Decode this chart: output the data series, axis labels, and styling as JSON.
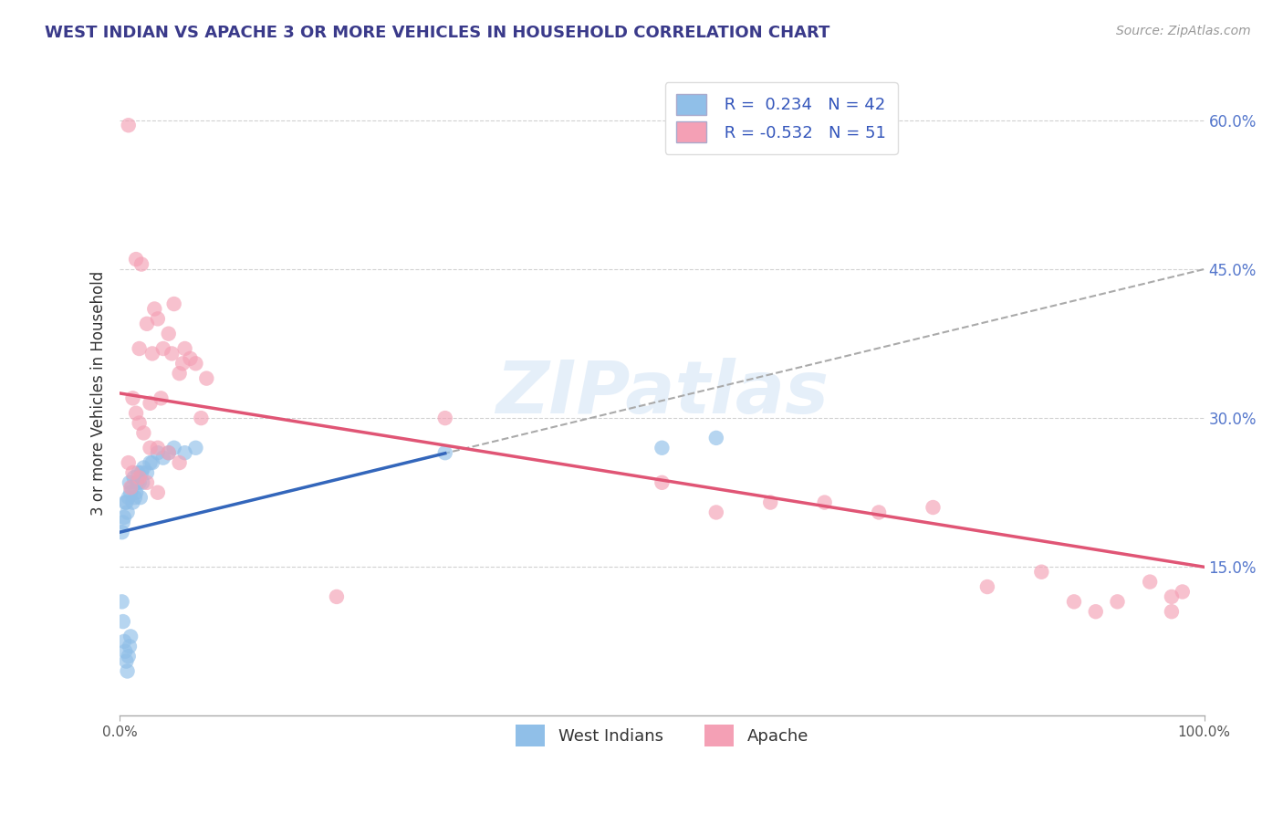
{
  "title": "WEST INDIAN VS APACHE 3 OR MORE VEHICLES IN HOUSEHOLD CORRELATION CHART",
  "source_text": "Source: ZipAtlas.com",
  "ylabel": "3 or more Vehicles in Household",
  "xlim": [
    0.0,
    100.0
  ],
  "ylim": [
    0.0,
    0.65
  ],
  "yticks": [
    0.15,
    0.3,
    0.45,
    0.6
  ],
  "ytick_labels": [
    "15.0%",
    "30.0%",
    "45.0%",
    "60.0%"
  ],
  "bottom_legend_labels": [
    "West Indians",
    "Apache"
  ],
  "legend_R_N": [
    {
      "R": 0.234,
      "N": 42
    },
    {
      "R": -0.532,
      "N": 51
    }
  ],
  "watermark": "ZIPatlas",
  "title_color": "#3a3a8a",
  "source_color": "#999999",
  "background_color": "#ffffff",
  "grid_color": "#cccccc",
  "west_indian_dot_color": "#90bfe8",
  "apache_dot_color": "#f4a0b5",
  "west_indian_line_color": "#3366bb",
  "apache_line_color": "#e05575",
  "dash_line_color": "#aaaaaa",
  "west_indian_scatter": [
    [
      0.2,
      0.185
    ],
    [
      0.3,
      0.195
    ],
    [
      0.4,
      0.2
    ],
    [
      0.5,
      0.215
    ],
    [
      0.6,
      0.215
    ],
    [
      0.7,
      0.205
    ],
    [
      0.8,
      0.22
    ],
    [
      0.9,
      0.235
    ],
    [
      1.0,
      0.225
    ],
    [
      1.1,
      0.23
    ],
    [
      1.2,
      0.215
    ],
    [
      1.3,
      0.24
    ],
    [
      1.4,
      0.22
    ],
    [
      1.5,
      0.225
    ],
    [
      1.6,
      0.235
    ],
    [
      1.7,
      0.245
    ],
    [
      1.8,
      0.235
    ],
    [
      1.9,
      0.22
    ],
    [
      2.0,
      0.245
    ],
    [
      2.1,
      0.235
    ],
    [
      2.2,
      0.25
    ],
    [
      2.5,
      0.245
    ],
    [
      2.8,
      0.255
    ],
    [
      3.0,
      0.255
    ],
    [
      3.5,
      0.265
    ],
    [
      4.0,
      0.26
    ],
    [
      4.5,
      0.265
    ],
    [
      5.0,
      0.27
    ],
    [
      6.0,
      0.265
    ],
    [
      7.0,
      0.27
    ],
    [
      0.2,
      0.115
    ],
    [
      0.3,
      0.095
    ],
    [
      0.4,
      0.075
    ],
    [
      0.5,
      0.065
    ],
    [
      0.6,
      0.055
    ],
    [
      0.7,
      0.045
    ],
    [
      0.8,
      0.06
    ],
    [
      0.9,
      0.07
    ],
    [
      1.0,
      0.08
    ],
    [
      30.0,
      0.265
    ],
    [
      50.0,
      0.27
    ],
    [
      55.0,
      0.28
    ]
  ],
  "apache_scatter": [
    [
      0.8,
      0.595
    ],
    [
      1.5,
      0.46
    ],
    [
      2.0,
      0.455
    ],
    [
      1.8,
      0.37
    ],
    [
      2.5,
      0.395
    ],
    [
      3.0,
      0.365
    ],
    [
      3.5,
      0.4
    ],
    [
      4.0,
      0.37
    ],
    [
      4.5,
      0.385
    ],
    [
      5.0,
      0.415
    ],
    [
      3.2,
      0.41
    ],
    [
      5.5,
      0.345
    ],
    [
      6.0,
      0.37
    ],
    [
      6.5,
      0.36
    ],
    [
      7.0,
      0.355
    ],
    [
      7.5,
      0.3
    ],
    [
      4.8,
      0.365
    ],
    [
      8.0,
      0.34
    ],
    [
      5.8,
      0.355
    ],
    [
      2.8,
      0.315
    ],
    [
      3.8,
      0.32
    ],
    [
      1.2,
      0.32
    ],
    [
      1.5,
      0.305
    ],
    [
      1.8,
      0.295
    ],
    [
      2.2,
      0.285
    ],
    [
      2.8,
      0.27
    ],
    [
      3.5,
      0.27
    ],
    [
      4.5,
      0.265
    ],
    [
      5.5,
      0.255
    ],
    [
      0.8,
      0.255
    ],
    [
      1.2,
      0.245
    ],
    [
      1.8,
      0.24
    ],
    [
      2.5,
      0.235
    ],
    [
      3.5,
      0.225
    ],
    [
      1.0,
      0.23
    ],
    [
      30.0,
      0.3
    ],
    [
      50.0,
      0.235
    ],
    [
      55.0,
      0.205
    ],
    [
      60.0,
      0.215
    ],
    [
      65.0,
      0.215
    ],
    [
      70.0,
      0.205
    ],
    [
      75.0,
      0.21
    ],
    [
      80.0,
      0.13
    ],
    [
      85.0,
      0.145
    ],
    [
      90.0,
      0.105
    ],
    [
      95.0,
      0.135
    ],
    [
      97.0,
      0.12
    ],
    [
      88.0,
      0.115
    ],
    [
      92.0,
      0.115
    ],
    [
      97.0,
      0.105
    ],
    [
      98.0,
      0.125
    ],
    [
      20.0,
      0.12
    ]
  ]
}
